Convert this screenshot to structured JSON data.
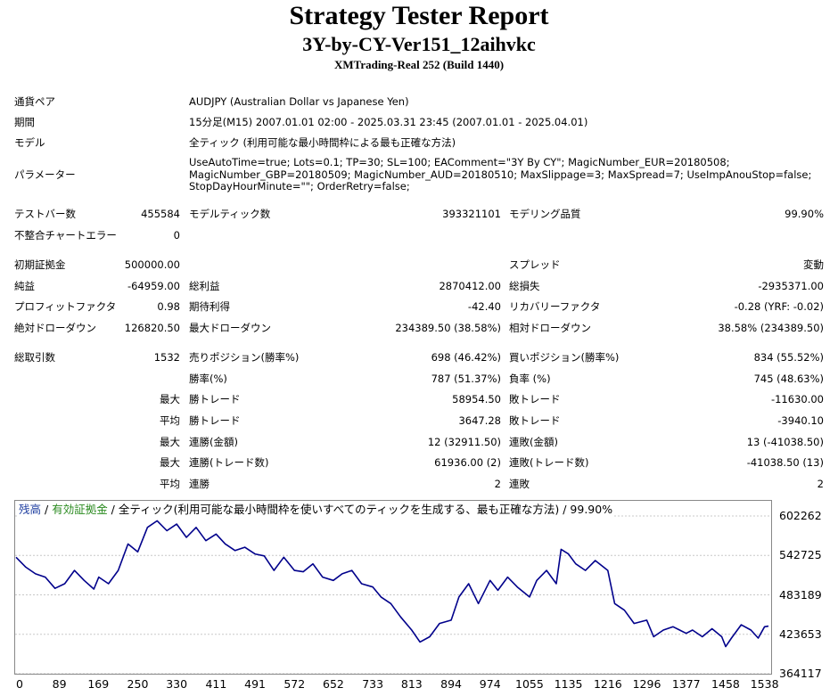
{
  "header": {
    "title": "Strategy Tester Report",
    "subtitle": "3Y-by-CY-Ver151_12aihvkc",
    "server": "XMTrading-Real 252 (Build 1440)"
  },
  "info": [
    {
      "label": "通貨ペア",
      "value": "AUDJPY (Australian Dollar vs Japanese Yen)"
    },
    {
      "label": "期間",
      "value": "15分足(M15) 2007.01.01 02:00 - 2025.03.31 23:45 (2007.01.01 - 2025.04.01)"
    },
    {
      "label": "モデル",
      "value": "全ティック (利用可能な最小時間枠による最も正確な方法)"
    },
    {
      "label": "パラメーター",
      "value": "UseAutoTime=true; Lots=0.1; TP=30; SL=100; EAComment=\"3Y By CY\"; MagicNumber_EUR=20180508;\nMagicNumber_GBP=20180509; MagicNumber_AUD=20180510; MaxSlippage=3; MaxSpread=7; UseImpAnouStop=false;\nStopDayHourMinute=\"\"; OrderRetry=false;"
    }
  ],
  "stats": {
    "bars_label": "テストバー数",
    "bars": "455584",
    "ticks_label": "モデルティック数",
    "ticks": "393321101",
    "quality_label": "モデリング品質",
    "quality": "99.90%",
    "mismatch_label": "不整合チャートエラー",
    "mismatch": "0",
    "deposit_label": "初期証拠金",
    "deposit": "500000.00",
    "spread_label": "スプレッド",
    "spread": "変動",
    "net_label": "純益",
    "net": "-64959.00",
    "gross_profit_label": "総利益",
    "gross_profit": "2870412.00",
    "gross_loss_label": "総損失",
    "gross_loss": "-2935371.00",
    "pf_label": "プロフィットファクタ",
    "pf": "0.98",
    "payoff_label": "期待利得",
    "payoff": "-42.40",
    "recovery_label": "リカバリーファクタ",
    "recovery": "-0.28 (YRF: -0.02)",
    "abs_dd_label": "絶対ドローダウン",
    "abs_dd": "126820.50",
    "max_dd_label": "最大ドローダウン",
    "max_dd": "234389.50 (38.58%)",
    "rel_dd_label": "相対ドローダウン",
    "rel_dd": "38.58% (234389.50)",
    "total_trades_label": "総取引数",
    "total_trades": "1532",
    "short_label": "売りポジション(勝率%)",
    "short": "698 (46.42%)",
    "long_label": "買いポジション(勝率%)",
    "long": "834 (55.52%)",
    "win_rate_label": "勝率(%)",
    "win_rate": "787 (51.37%)",
    "loss_rate_label": "負率 (%)",
    "loss_rate": "745 (48.63%)",
    "max_word": "最大",
    "avg_word": "平均",
    "largest_win_label": "勝トレード",
    "largest_win": "58954.50",
    "largest_loss_label": "敗トレード",
    "largest_loss": "-11630.00",
    "avg_win_label": "勝トレード",
    "avg_win": "3647.28",
    "avg_loss_label": "敗トレード",
    "avg_loss": "-3940.10",
    "max_cons_win_label": "連勝(金額)",
    "max_cons_win": "12 (32911.50)",
    "max_cons_loss_label": "連敗(金額)",
    "max_cons_loss": "13 (-41038.50)",
    "max_cons_profit_label": "連勝(トレード数)",
    "max_cons_profit": "61936.00 (2)",
    "max_cons_lossamt_label": "連敗(トレード数)",
    "max_cons_lossamt": "-41038.50 (13)",
    "avg_cons_win_label": "連勝",
    "avg_cons_win": "2",
    "avg_cons_loss_label": "連敗",
    "avg_cons_loss": "2"
  },
  "chart_legend": {
    "balance": "残高",
    "sep1": " / ",
    "equity": "有効証拠金",
    "sep2": " / ",
    "rest": "全ティック(利用可能な最小時間枠を使いすべてのティックを生成する、最も正確な方法) / 99.90%"
  },
  "chart_data": {
    "type": "line",
    "series": [
      {
        "x": [
          0,
          20,
          40,
          60,
          80,
          100,
          120,
          140,
          160,
          170,
          190,
          210,
          230,
          250,
          270,
          290,
          310,
          330,
          350,
          370,
          390,
          411,
          430,
          450,
          470,
          491,
          510,
          530,
          550,
          572,
          590,
          610,
          630,
          652,
          670,
          690,
          710,
          733,
          750,
          770,
          790,
          813,
          830,
          850,
          870,
          894,
          910,
          930,
          950,
          974,
          990,
          1010,
          1030,
          1055,
          1070,
          1090,
          1110,
          1120,
          1135,
          1150,
          1170,
          1190,
          1216,
          1230,
          1250,
          1270,
          1296,
          1310,
          1330,
          1350,
          1377,
          1390,
          1410,
          1430,
          1450,
          1458,
          1470,
          1490,
          1510,
          1525,
          1538,
          1546
        ],
        "values": [
          540000,
          525000,
          515000,
          510000,
          493000,
          500000,
          520000,
          505000,
          492000,
          510000,
          500000,
          520000,
          560000,
          548000,
          585000,
          595000,
          580000,
          590000,
          570000,
          585000,
          565000,
          575000,
          560000,
          550000,
          555000,
          545000,
          542000,
          520000,
          540000,
          520000,
          518000,
          530000,
          510000,
          505000,
          515000,
          520000,
          500000,
          495000,
          480000,
          470000,
          450000,
          430000,
          412000,
          420000,
          440000,
          445000,
          480000,
          500000,
          470000,
          505000,
          490000,
          510000,
          495000,
          480000,
          505000,
          520000,
          500000,
          552000,
          545000,
          530000,
          520000,
          535000,
          520000,
          470000,
          460000,
          440000,
          445000,
          420000,
          430000,
          435000,
          425000,
          430000,
          420000,
          432000,
          420000,
          405000,
          418000,
          438000,
          430000,
          418000,
          435000,
          436000
        ]
      }
    ],
    "xlim": [
      0,
      1546
    ],
    "ylim": [
      364117,
      630000
    ],
    "x_ticks": [
      "0",
      "89",
      "169",
      "250",
      "330",
      "411",
      "491",
      "572",
      "652",
      "733",
      "813",
      "894",
      "974",
      "1055",
      "1135",
      "1216",
      "1296",
      "1377",
      "1458",
      "1538"
    ],
    "y_ticks": [
      "602262",
      "542725",
      "483189",
      "423653",
      "364117"
    ],
    "grid": true,
    "color": "#00008b"
  }
}
